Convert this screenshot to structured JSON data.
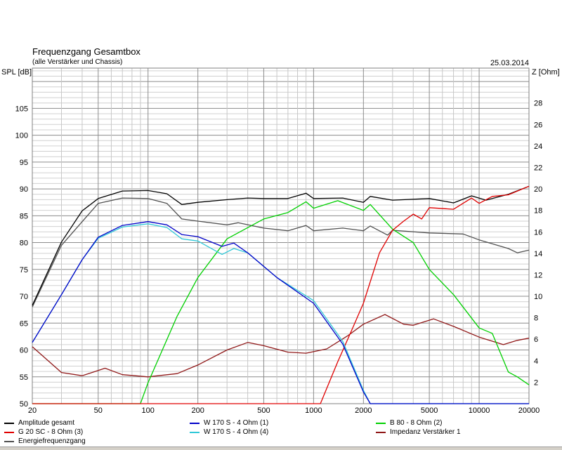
{
  "chart_data": {
    "type": "line",
    "title": "Frequenzgang Gesamtbox",
    "subtitle": "(alle Verstärker und Chassis)",
    "date": "25.03.2014",
    "ylabel": "SPL [dB]",
    "ylabel_right": "Z [Ohm]",
    "x_scale": "log",
    "xlim": [
      20,
      20000
    ],
    "ylim": [
      50,
      112.5
    ],
    "ylim_right": [
      0,
      31.25
    ],
    "grid": true,
    "legend_position": "bottom",
    "x_ticks": [
      20,
      50,
      100,
      200,
      500,
      1000,
      2000,
      5000,
      10000,
      20000
    ],
    "y_ticks": [
      50,
      55,
      60,
      65,
      70,
      75,
      80,
      85,
      90,
      95,
      100,
      105
    ],
    "y_ticks_right": [
      2,
      4,
      6,
      8,
      10,
      12,
      14,
      16,
      18,
      20,
      22,
      24,
      26,
      28
    ],
    "series": [
      {
        "name": "Amplitude gesamt",
        "color": "#000000",
        "axis": "left",
        "x": [
          20,
          30,
          40,
          50,
          70,
          100,
          130,
          160,
          200,
          300,
          400,
          500,
          700,
          900,
          1000,
          1500,
          2000,
          2200,
          3000,
          5000,
          7000,
          9000,
          11000,
          15000,
          20000
        ],
        "y": [
          68.3,
          80.1,
          85.9,
          88.2,
          89.6,
          89.7,
          89.1,
          87.1,
          87.5,
          88.0,
          88.3,
          88.2,
          88.2,
          89.2,
          88.2,
          88.3,
          87.5,
          88.6,
          87.9,
          88.2,
          87.4,
          88.7,
          87.9,
          89.0,
          90.5
        ]
      },
      {
        "name": "W 170 S - 4 Ohm (1)",
        "color": "#0000c8",
        "axis": "left",
        "x": [
          20,
          30,
          40,
          50,
          70,
          100,
          130,
          160,
          200,
          280,
          330,
          400,
          600,
          1000,
          1500,
          2000,
          2200,
          20000
        ],
        "y": [
          61.4,
          70.3,
          76.8,
          81.0,
          83.2,
          83.9,
          83.3,
          81.5,
          81.1,
          79.3,
          79.9,
          78.1,
          73.5,
          68.7,
          61.1,
          52.2,
          50,
          50
        ]
      },
      {
        "name": "B 80 - 8 Ohm (2)",
        "color": "#00d000",
        "axis": "left",
        "x": [
          20,
          90,
          100,
          150,
          200,
          300,
          500,
          700,
          900,
          1000,
          1400,
          2000,
          2200,
          3000,
          4000,
          5000,
          7000,
          10000,
          12000,
          15000,
          17000,
          20000
        ],
        "y": [
          50,
          50,
          53.9,
          66.3,
          73.5,
          80.7,
          84.4,
          85.6,
          87.6,
          86.4,
          87.8,
          86.0,
          87.1,
          82.5,
          80.0,
          75.0,
          70.3,
          64.1,
          63.1,
          55.9,
          55.0,
          53.5
        ]
      },
      {
        "name": "G 20 SC - 8 Ohm (3)",
        "color": "#e00000",
        "axis": "left",
        "x": [
          20,
          1100,
          1400,
          1700,
          2000,
          2500,
          3000,
          3500,
          4000,
          4500,
          5000,
          7000,
          9000,
          10000,
          12000,
          15000,
          20000
        ],
        "y": [
          50,
          50,
          57.8,
          63.7,
          68.7,
          78.1,
          82.3,
          84.0,
          85.3,
          84.4,
          86.5,
          86.2,
          88.3,
          87.3,
          88.6,
          88.9,
          90.5
        ]
      },
      {
        "name": "W 170 S - 4 Ohm (4)",
        "color": "#30c8d8",
        "axis": "left",
        "x": [
          20,
          30,
          40,
          50,
          70,
          100,
          130,
          160,
          200,
          280,
          330,
          400,
          600,
          1000,
          1500,
          2000,
          2200,
          20000
        ],
        "y": [
          61.4,
          70.3,
          76.8,
          80.8,
          82.9,
          83.5,
          82.8,
          80.7,
          80.3,
          77.8,
          78.9,
          78.1,
          73.5,
          69.2,
          61.6,
          52.5,
          50,
          50
        ]
      },
      {
        "name": "Impedanz Verstärker 1",
        "color": "#901818",
        "axis": "right",
        "x": [
          20,
          30,
          40,
          55,
          70,
          100,
          150,
          200,
          300,
          400,
          500,
          700,
          900,
          1200,
          1600,
          2000,
          2700,
          3500,
          4000,
          5300,
          7000,
          10000,
          14000,
          17000,
          20000
        ],
        "y": [
          5.3,
          2.9,
          2.6,
          3.3,
          2.7,
          2.5,
          2.8,
          3.6,
          5.0,
          5.7,
          5.4,
          4.8,
          4.7,
          5.1,
          6.3,
          7.4,
          8.3,
          7.4,
          7.3,
          7.9,
          7.2,
          6.2,
          5.5,
          5.9,
          6.1
        ]
      },
      {
        "name": "Energiefrequenzgang",
        "color": "#505050",
        "axis": "left",
        "x": [
          20,
          30,
          50,
          70,
          100,
          130,
          160,
          200,
          300,
          350,
          500,
          700,
          900,
          1000,
          1500,
          2000,
          2200,
          2800,
          3000,
          5000,
          8000,
          10000,
          15000,
          17000,
          20000
        ],
        "y": [
          68.0,
          79.5,
          87.3,
          88.3,
          88.2,
          87.3,
          84.4,
          84.0,
          83.3,
          83.7,
          82.7,
          82.2,
          83.2,
          82.2,
          82.7,
          82.2,
          83.1,
          81.4,
          82.3,
          81.8,
          81.6,
          80.5,
          78.9,
          78.1,
          78.6
        ]
      }
    ]
  }
}
